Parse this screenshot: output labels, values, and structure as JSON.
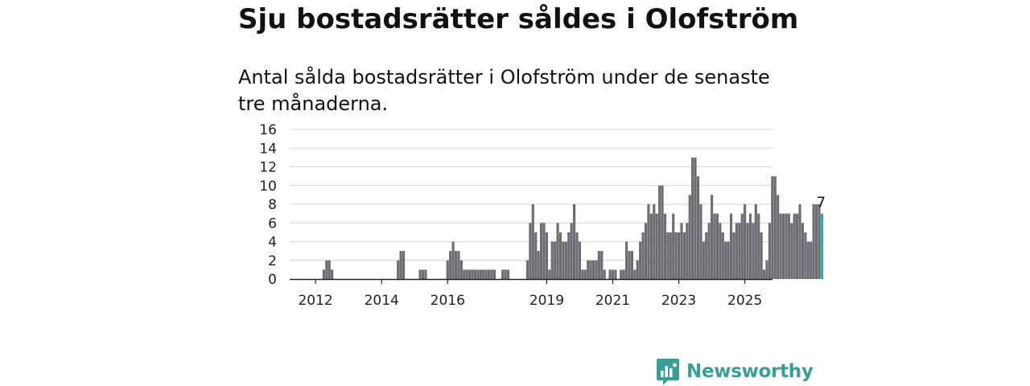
{
  "header": {
    "title": "Sju bostadsrätter såldes i Olofström",
    "subtitle": "Antal sålda bostadsrätter i Olofström under de senaste tre månaderna."
  },
  "brand": {
    "name": "Newsworthy",
    "color": "#3a9e98"
  },
  "chart_data": {
    "type": "bar",
    "start_month": "2011-07",
    "values": [
      0,
      0,
      0,
      0,
      0,
      0,
      0,
      0,
      0,
      1,
      2,
      2,
      1,
      0,
      0,
      0,
      0,
      0,
      0,
      0,
      0,
      0,
      0,
      0,
      0,
      0,
      0,
      0,
      0,
      0,
      0,
      0,
      0,
      0,
      0,
      0,
      2,
      3,
      3,
      0,
      0,
      0,
      0,
      0,
      1,
      1,
      1,
      0,
      0,
      0,
      0,
      0,
      0,
      0,
      2,
      3,
      4,
      3,
      3,
      2,
      1,
      1,
      1,
      1,
      1,
      1,
      1,
      1,
      1,
      1,
      1,
      1,
      0,
      0,
      1,
      1,
      1,
      0,
      0,
      0,
      0,
      0,
      0,
      2,
      6,
      8,
      5,
      3,
      6,
      6,
      5,
      1,
      4,
      4,
      6,
      5,
      4,
      4,
      5,
      6,
      8,
      5,
      4,
      1,
      1,
      2,
      2,
      2,
      2,
      3,
      3,
      1,
      0,
      1,
      1,
      1,
      0,
      1,
      1,
      4,
      3,
      3,
      1,
      2,
      4,
      5,
      6,
      8,
      7,
      8,
      7,
      10,
      10,
      7,
      5,
      5,
      7,
      5,
      5,
      6,
      5,
      6,
      9,
      13,
      13,
      11,
      8,
      4,
      5,
      6,
      9,
      7,
      7,
      6,
      5,
      4,
      4,
      7,
      5,
      6,
      6,
      7,
      8,
      6,
      7,
      6,
      8,
      7,
      5,
      1,
      2,
      6,
      11,
      11,
      9,
      7,
      7,
      7,
      7,
      6,
      7,
      7,
      8,
      6,
      5,
      4,
      4,
      8,
      8,
      8,
      7
    ],
    "highlight_color": "#3aa8a2",
    "bar_color": "#6d6d73",
    "ylim": [
      0,
      16
    ],
    "yticks": [
      0,
      2,
      4,
      6,
      8,
      10,
      12,
      14,
      16
    ],
    "xticks": [
      {
        "label": "2012",
        "month": "2012-01"
      },
      {
        "label": "2014",
        "month": "2014-01"
      },
      {
        "label": "2016",
        "month": "2016-01"
      },
      {
        "label": "2019",
        "month": "2019-01"
      },
      {
        "label": "2021",
        "month": "2021-01"
      },
      {
        "label": "2023",
        "month": "2023-01"
      },
      {
        "label": "2025",
        "month": "2025-01"
      }
    ],
    "last_value_label": "7",
    "grid": true
  }
}
